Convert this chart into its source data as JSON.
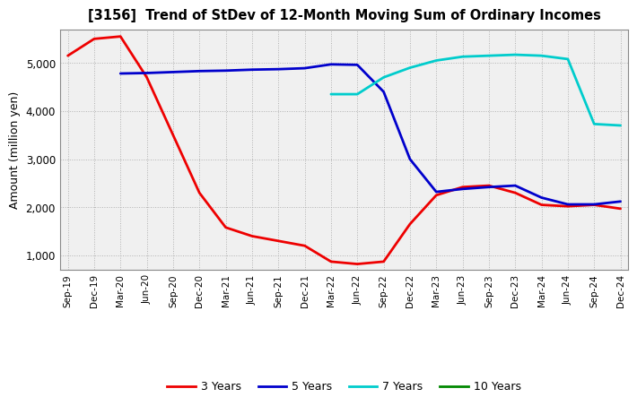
{
  "title": "[3156]  Trend of StDev of 12-Month Moving Sum of Ordinary Incomes",
  "ylabel": "Amount (million yen)",
  "background_color": "#ffffff",
  "plot_bg_color": "#f0f0f0",
  "grid_color": "#aaaaaa",
  "ylim": [
    700,
    5700
  ],
  "yticks": [
    1000,
    2000,
    3000,
    4000,
    5000
  ],
  "x_labels": [
    "Sep-19",
    "Dec-19",
    "Mar-20",
    "Jun-20",
    "Sep-20",
    "Dec-20",
    "Mar-21",
    "Jun-21",
    "Sep-21",
    "Dec-21",
    "Mar-22",
    "Jun-22",
    "Sep-22",
    "Dec-22",
    "Mar-23",
    "Jun-23",
    "Sep-23",
    "Dec-23",
    "Mar-24",
    "Jun-24",
    "Sep-24",
    "Dec-24"
  ],
  "series": {
    "3 Years": {
      "color": "#ee0000",
      "data_x": [
        0,
        1,
        2,
        3,
        4,
        5,
        6,
        7,
        8,
        9,
        10,
        11,
        12,
        13,
        14,
        15,
        16,
        17,
        18,
        19,
        20,
        21
      ],
      "data_y": [
        5150,
        5500,
        5550,
        4700,
        3500,
        2300,
        1580,
        1400,
        1300,
        1200,
        870,
        820,
        870,
        1650,
        2250,
        2420,
        2450,
        2300,
        2050,
        2020,
        2050,
        1970
      ]
    },
    "5 Years": {
      "color": "#0000cc",
      "data_x": [
        2,
        3,
        4,
        5,
        6,
        7,
        8,
        9,
        10,
        11,
        12,
        13,
        14,
        15,
        16,
        17,
        18,
        19,
        20,
        21
      ],
      "data_y": [
        4780,
        4790,
        4810,
        4830,
        4840,
        4860,
        4870,
        4890,
        4970,
        4960,
        4400,
        3000,
        2320,
        2380,
        2420,
        2450,
        2200,
        2060,
        2060,
        2120
      ]
    },
    "7 Years": {
      "color": "#00cccc",
      "data_x": [
        10,
        11,
        12,
        13,
        14,
        15,
        16,
        17,
        18,
        19,
        20,
        21
      ],
      "data_y": [
        4350,
        4350,
        4700,
        4900,
        5050,
        5130,
        5150,
        5170,
        5150,
        5080,
        3730,
        3700
      ]
    },
    "10 Years": {
      "color": "#008800",
      "data_x": [
        21
      ],
      "data_y": [
        3700
      ]
    }
  },
  "legend_labels": [
    "3 Years",
    "5 Years",
    "7 Years",
    "10 Years"
  ],
  "legend_colors": [
    "#ee0000",
    "#0000cc",
    "#00cccc",
    "#008800"
  ]
}
